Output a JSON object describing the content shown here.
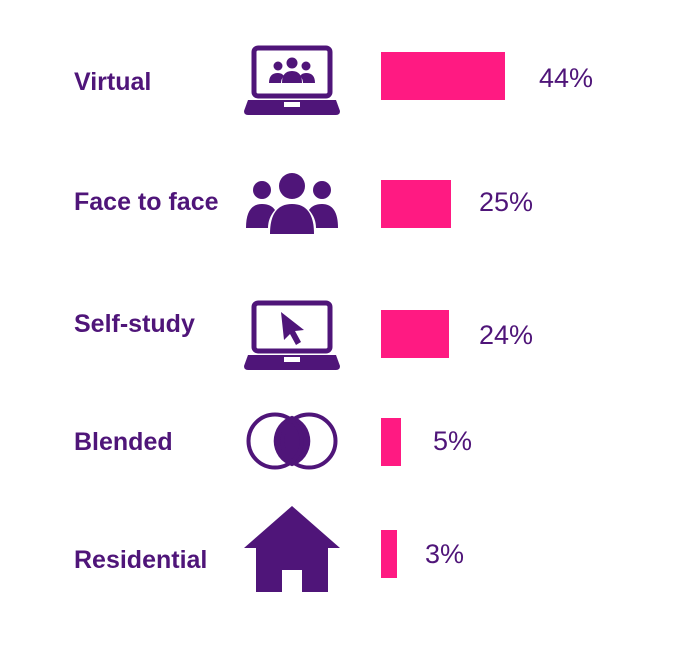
{
  "colors": {
    "label": "#4f1579",
    "bar": "#ff1a82",
    "icon": "#4f1579",
    "background": "#ffffff"
  },
  "chart_data": {
    "type": "bar",
    "orientation": "horizontal",
    "title": "",
    "xlabel": "",
    "ylabel": "",
    "grid": false,
    "legend": "none",
    "value_unit": "%",
    "xlim": [
      0,
      44
    ],
    "categories": [
      "Virtual",
      "Face to face",
      "Self-study",
      "Blended",
      "Residential"
    ],
    "values": [
      44,
      25,
      24,
      5,
      3
    ],
    "value_labels": [
      "44%",
      "25%",
      "24%",
      "5%",
      "3%"
    ],
    "icons": [
      "laptop-group-icon",
      "people-group-icon",
      "laptop-cursor-icon",
      "overlapping-circles-icon",
      "house-icon"
    ]
  }
}
